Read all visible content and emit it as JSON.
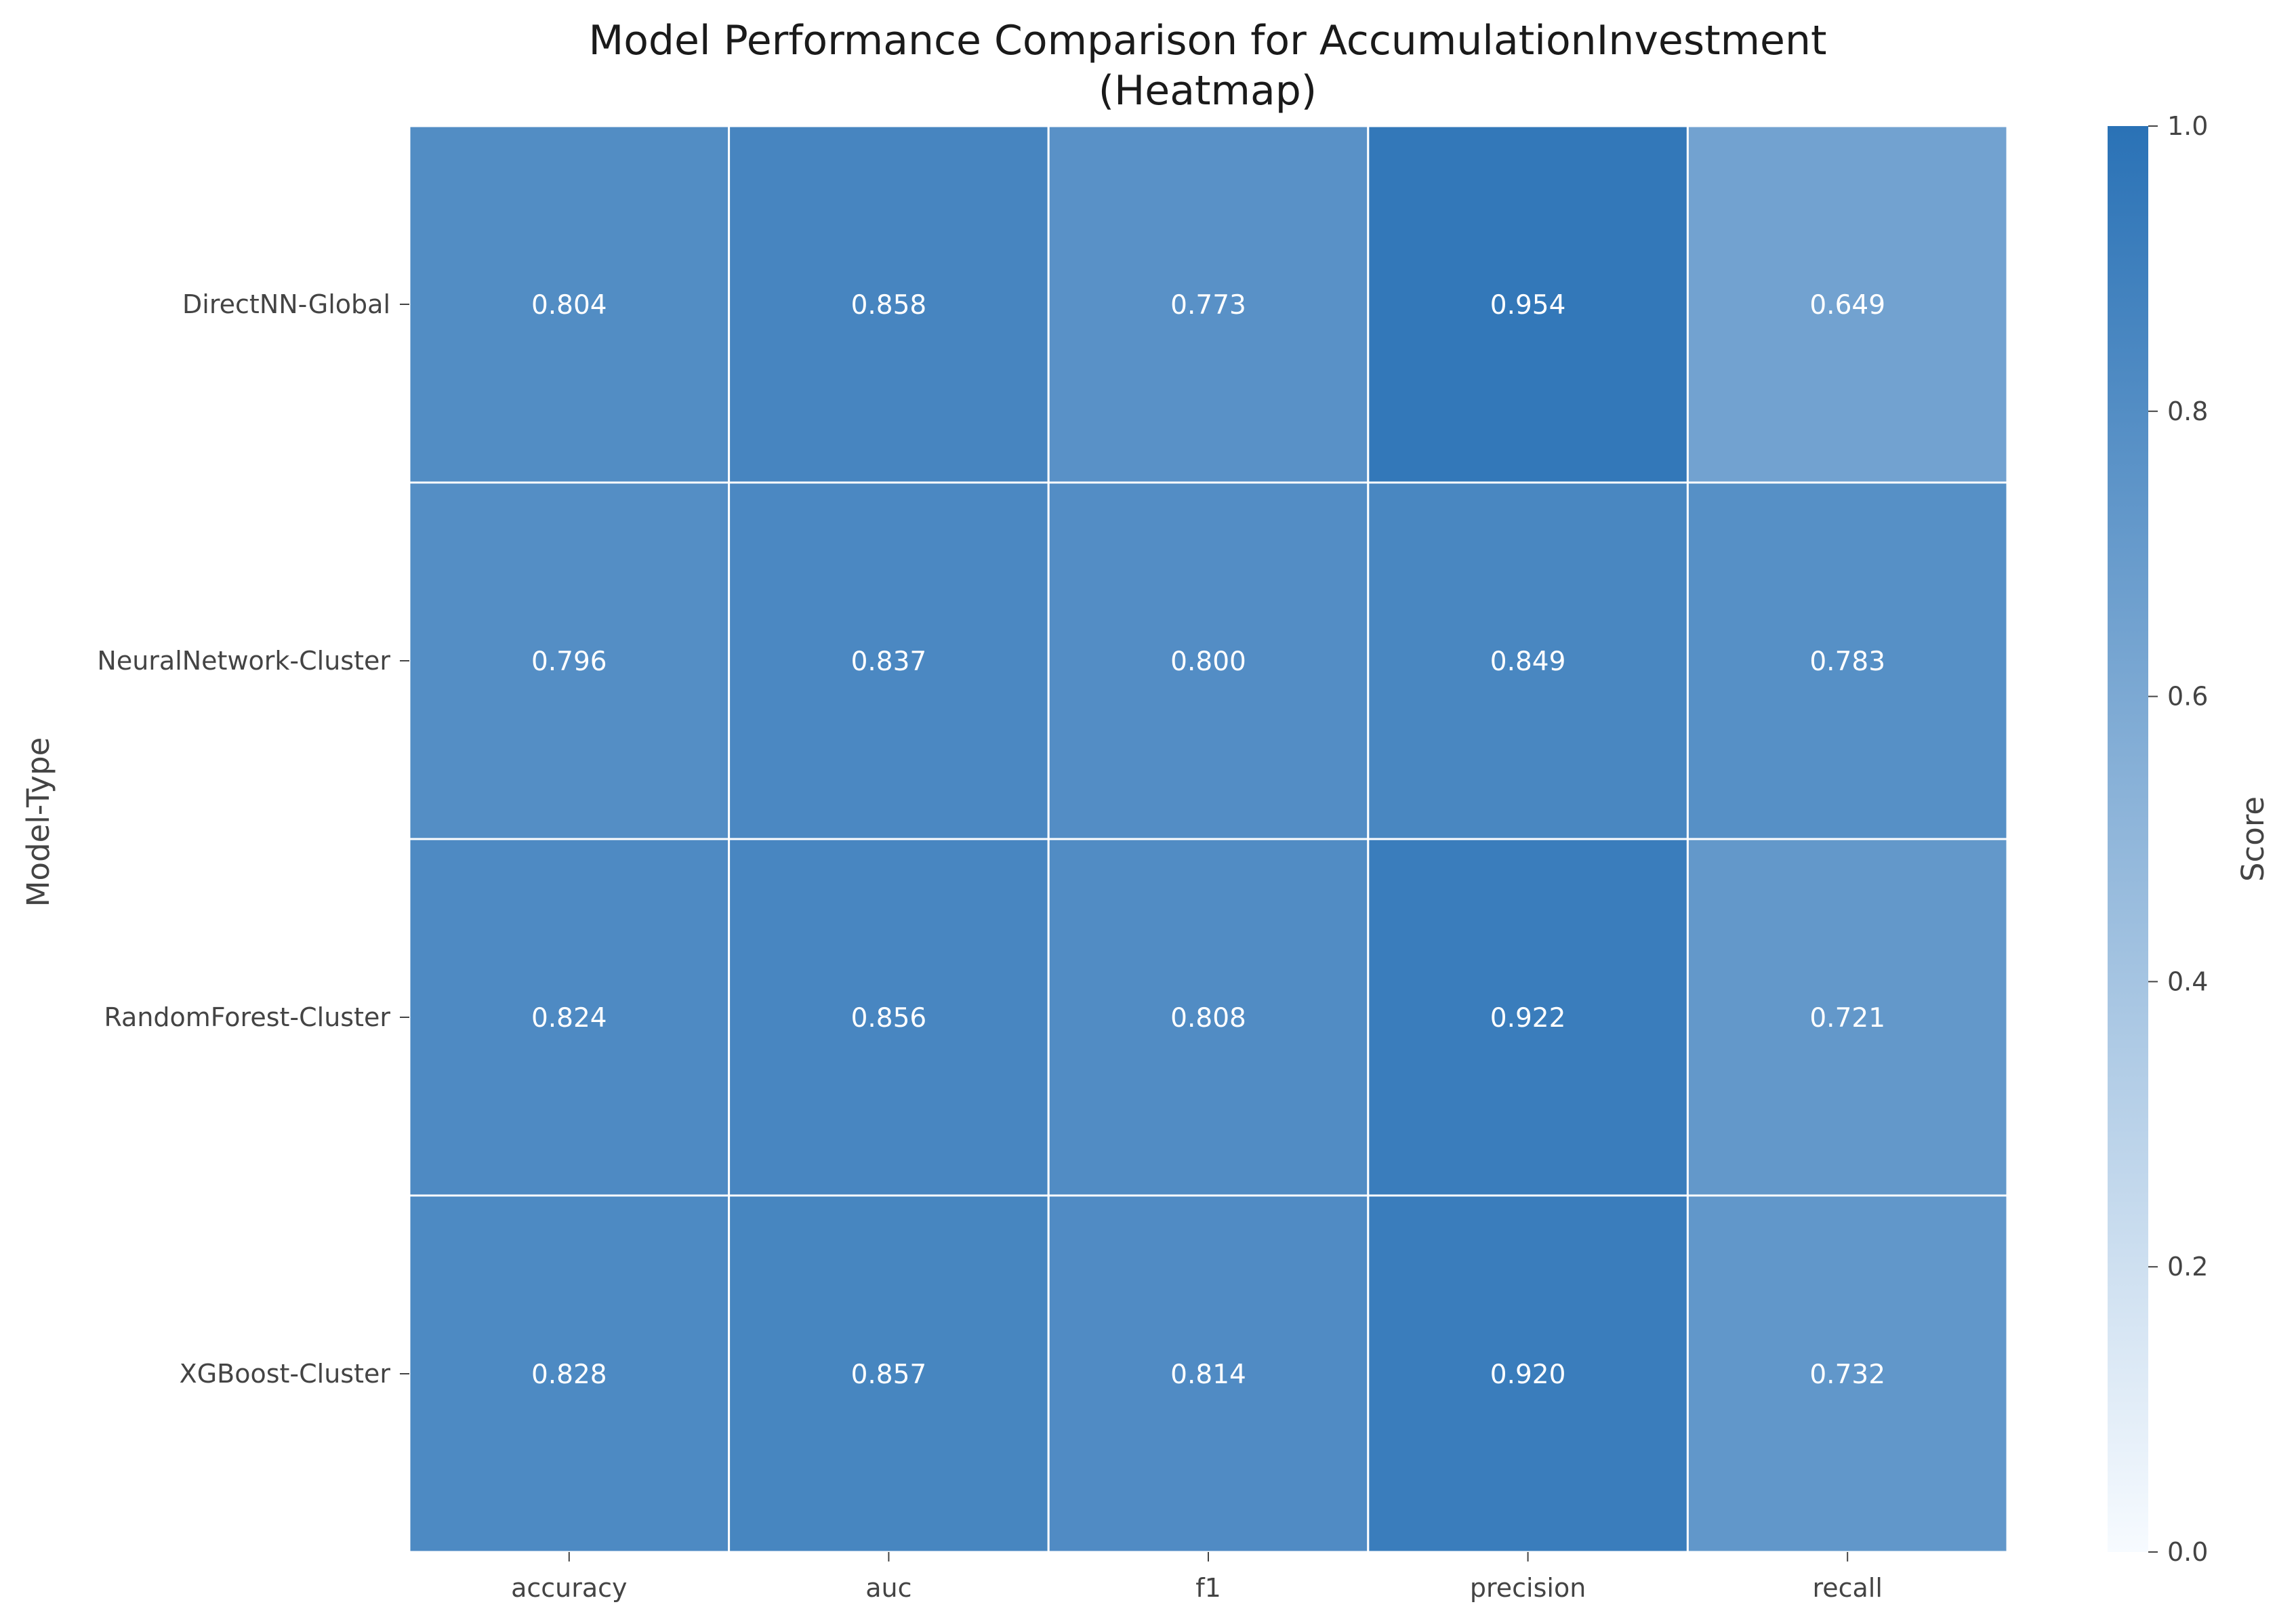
{
  "chart_data": {
    "type": "heatmap",
    "title": "Model Performance Comparison for AccumulationInvestment",
    "subtitle": "(Heatmap)",
    "xlabel": "",
    "ylabel": "Model-Type",
    "x_categories": [
      "accuracy",
      "auc",
      "f1",
      "precision",
      "recall"
    ],
    "y_categories": [
      "DirectNN-Global",
      "NeuralNetwork-Cluster",
      "RandomForest-Cluster",
      "XGBoost-Cluster"
    ],
    "values": [
      [
        0.804,
        0.858,
        0.773,
        0.954,
        0.649
      ],
      [
        0.796,
        0.837,
        0.8,
        0.849,
        0.783
      ],
      [
        0.824,
        0.856,
        0.808,
        0.922,
        0.721
      ],
      [
        0.828,
        0.857,
        0.814,
        0.92,
        0.732
      ]
    ],
    "cell_labels": [
      [
        "0.804",
        "0.858",
        "0.773",
        "0.954",
        "0.649"
      ],
      [
        "0.796",
        "0.837",
        "0.800",
        "0.849",
        "0.783"
      ],
      [
        "0.824",
        "0.856",
        "0.808",
        "0.922",
        "0.721"
      ],
      [
        "0.828",
        "0.857",
        "0.814",
        "0.920",
        "0.732"
      ]
    ],
    "colorbar": {
      "label": "Score",
      "range": [
        0,
        1
      ],
      "ticks": [
        0.0,
        0.2,
        0.4,
        0.6,
        0.8,
        1.0
      ],
      "tick_labels": [
        "0.0",
        "0.2",
        "0.4",
        "0.6",
        "0.8",
        "1.0"
      ],
      "color_low": "#f7fbff",
      "color_high": "#2a72b6",
      "placement": "right"
    },
    "cell_border_color": "#ffffff"
  }
}
